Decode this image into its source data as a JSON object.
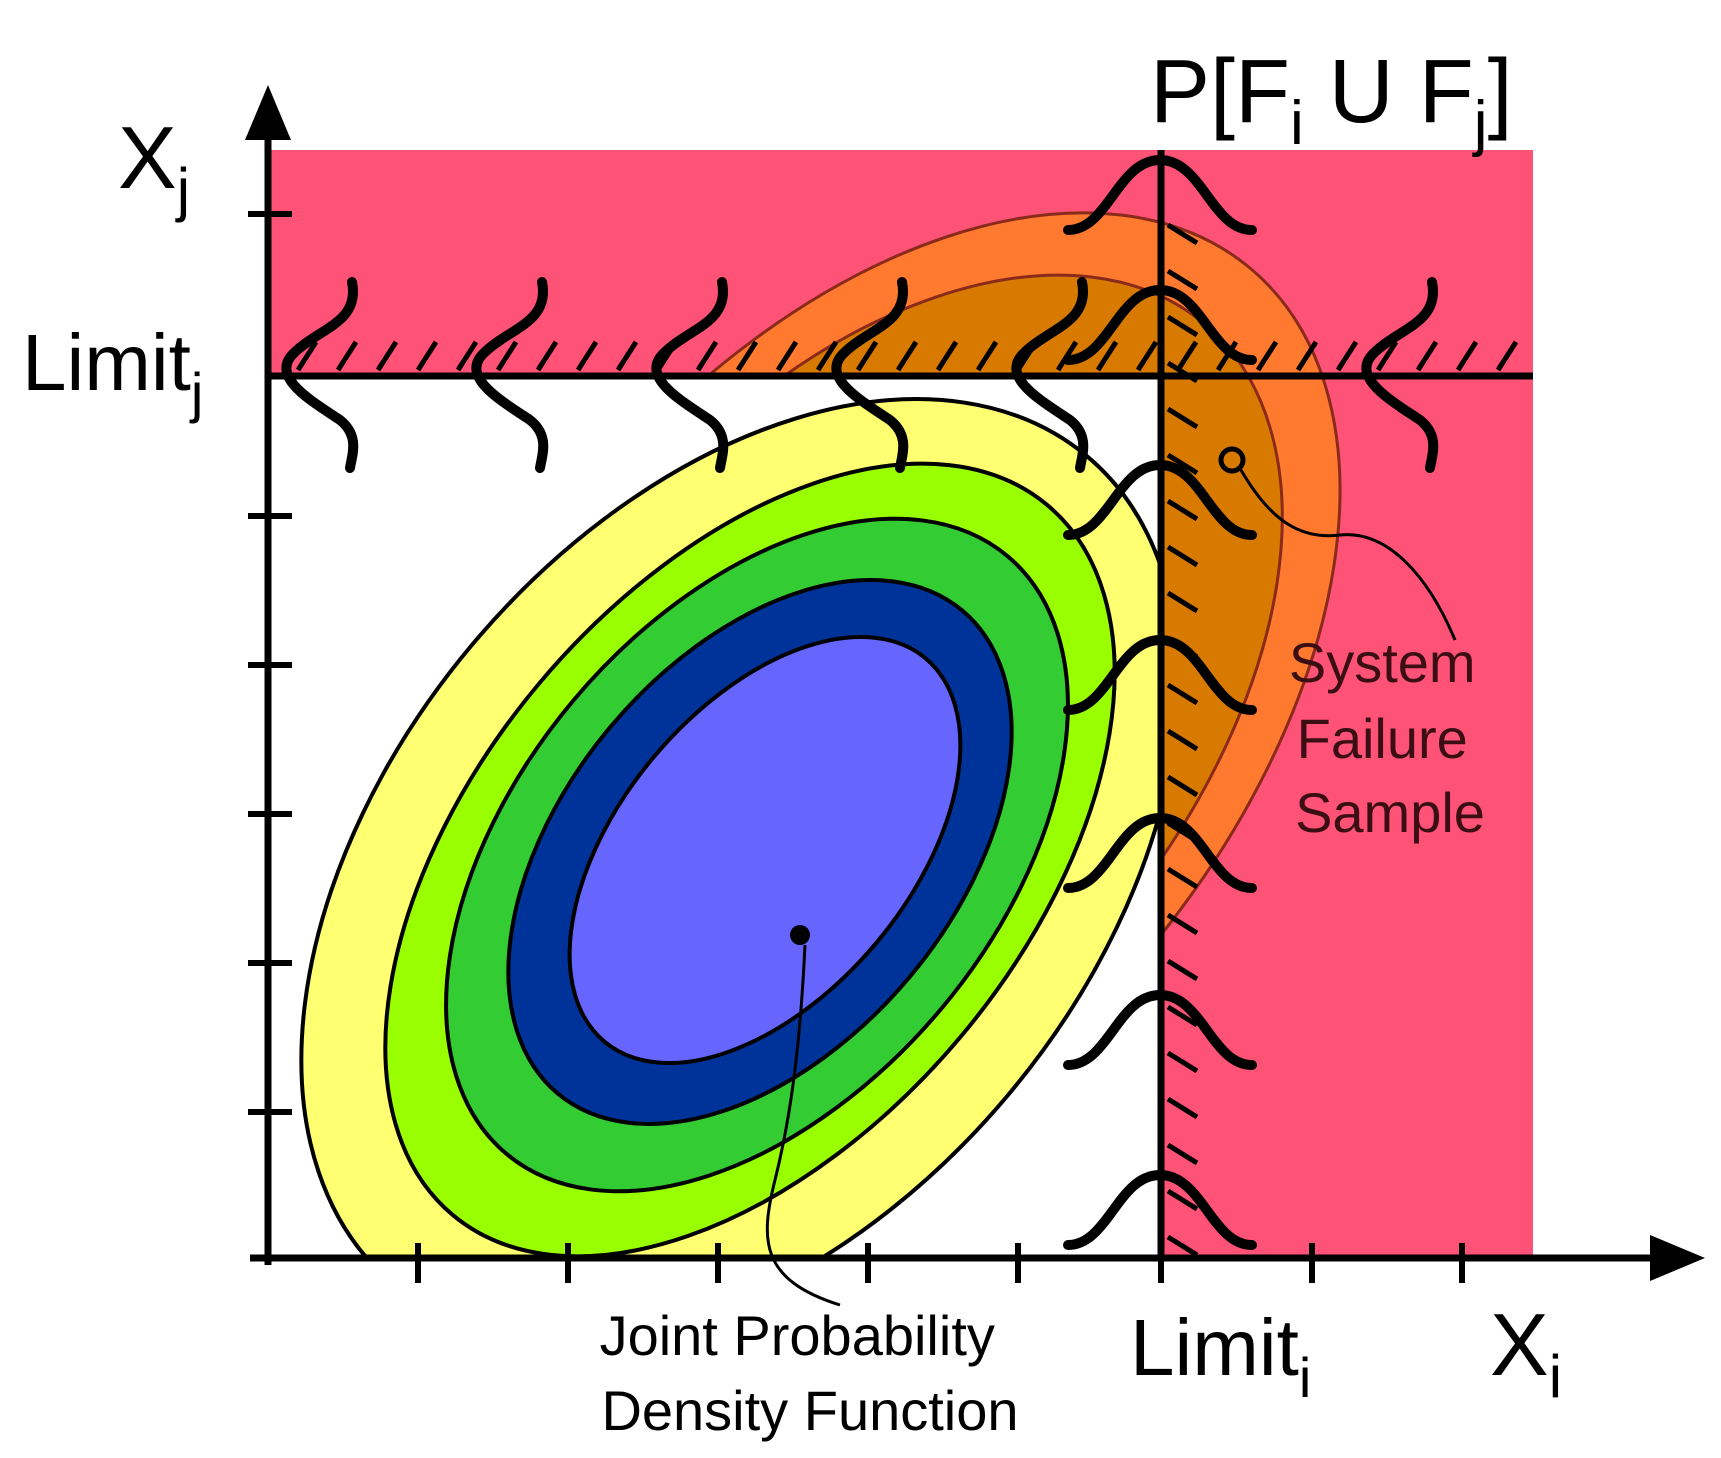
{
  "title": {
    "main": "P[F",
    "sub_i": "i",
    "union": " U F",
    "sub_j": "j",
    "close": "]"
  },
  "axes": {
    "x": {
      "base": "X",
      "sub": "i"
    },
    "y": {
      "base": "X",
      "sub": "j"
    }
  },
  "limits": {
    "i": {
      "base": "Limit",
      "sub": "i"
    },
    "j": {
      "base": "Limit",
      "sub": "j"
    }
  },
  "annotations": {
    "failure_sample": [
      "System",
      "Failure",
      "Sample"
    ],
    "joint_pdf": [
      "Joint Probability",
      "Density Function"
    ]
  },
  "colors": {
    "failure_region": "#ff5277",
    "orange_outer": "#ff7a2e",
    "orange_inner": "#d97a00",
    "yellow": "#ffff72",
    "lime": "#99ff00",
    "green": "#33cc33",
    "dark_blue": "#003399",
    "light_blue": "#6666ff",
    "annotation_text": "#3a0e12"
  }
}
